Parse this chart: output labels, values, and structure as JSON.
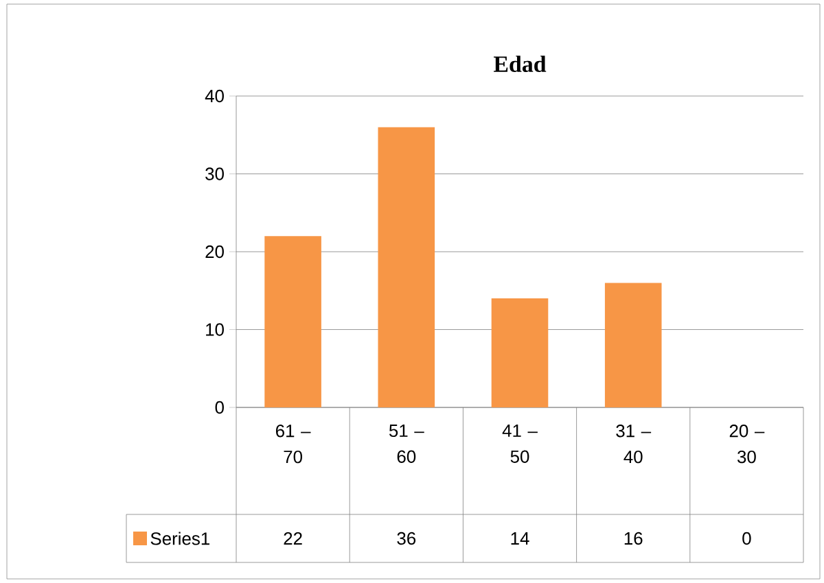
{
  "chart_data": {
    "type": "bar",
    "title": "Edad",
    "categories": [
      "61 – 70",
      "51 – 60",
      "41 – 50",
      "31 – 40",
      "20 – 30"
    ],
    "series": [
      {
        "name": "Series1",
        "color": "#f79646",
        "values": [
          22,
          36,
          14,
          16,
          0
        ]
      }
    ],
    "ylim": [
      0,
      40
    ],
    "yticks": [
      0,
      10,
      20,
      30,
      40
    ],
    "grid": "y",
    "legend": "bottom left",
    "data_labels": true
  }
}
